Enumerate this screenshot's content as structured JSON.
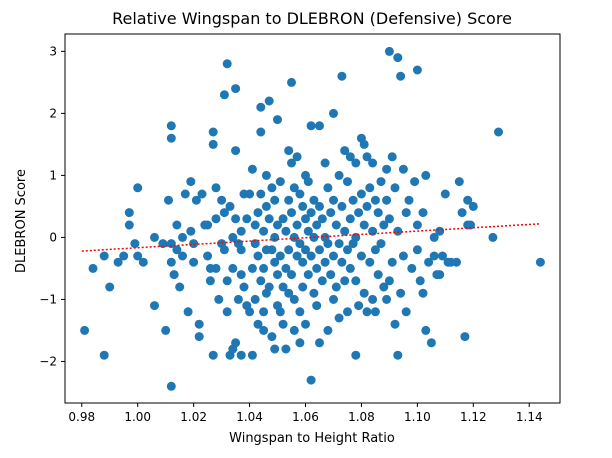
{
  "chart_data": {
    "type": "scatter",
    "title": "Relative Wingspan to DLEBRON (Defensive) Score",
    "xlabel": "Wingspan to Height Ratio",
    "ylabel": "DLEBRON Score",
    "xlim": [
      0.974,
      1.151
    ],
    "ylim": [
      -2.67,
      3.28
    ],
    "grid": false,
    "xticks": [
      {
        "value": 0.98,
        "label": "0.98"
      },
      {
        "value": 1.0,
        "label": "1.00"
      },
      {
        "value": 1.02,
        "label": "1.02"
      },
      {
        "value": 1.04,
        "label": "1.04"
      },
      {
        "value": 1.06,
        "label": "1.06"
      },
      {
        "value": 1.08,
        "label": "1.08"
      },
      {
        "value": 1.1,
        "label": "1.10"
      },
      {
        "value": 1.12,
        "label": "1.12"
      },
      {
        "value": 1.14,
        "label": "1.14"
      }
    ],
    "yticks": [
      {
        "value": -2,
        "label": "−2"
      },
      {
        "value": -1,
        "label": "−1"
      },
      {
        "value": 0,
        "label": "0"
      },
      {
        "value": 1,
        "label": "1"
      },
      {
        "value": 2,
        "label": "2"
      },
      {
        "value": 3,
        "label": "3"
      }
    ],
    "point_color": "#1f77b4",
    "trendline": {
      "x": [
        0.98,
        1.144
      ],
      "y": [
        -0.22,
        0.22
      ],
      "color": "#ff0000",
      "style": "dotted"
    },
    "points": [
      [
        0.981,
        -1.5
      ],
      [
        0.984,
        -0.5
      ],
      [
        0.988,
        -1.9
      ],
      [
        0.988,
        -0.3
      ],
      [
        0.99,
        -0.8
      ],
      [
        0.993,
        -0.4
      ],
      [
        0.995,
        -0.3
      ],
      [
        0.997,
        0.4
      ],
      [
        0.997,
        0.2
      ],
      [
        0.999,
        -0.1
      ],
      [
        1.0,
        0.8
      ],
      [
        1.0,
        -0.3
      ],
      [
        1.002,
        -0.4
      ],
      [
        1.006,
        0.0
      ],
      [
        1.006,
        -1.1
      ],
      [
        1.009,
        -0.1
      ],
      [
        1.01,
        -1.5
      ],
      [
        1.011,
        0.6
      ],
      [
        1.012,
        1.8
      ],
      [
        1.012,
        1.6
      ],
      [
        1.012,
        -0.1
      ],
      [
        1.012,
        -0.4
      ],
      [
        1.012,
        -2.4
      ],
      [
        1.013,
        -0.6
      ],
      [
        1.014,
        0.2
      ],
      [
        1.014,
        -0.2
      ],
      [
        1.015,
        -0.8
      ],
      [
        1.016,
        0.0
      ],
      [
        1.016,
        -0.3
      ],
      [
        1.017,
        0.7
      ],
      [
        1.018,
        -1.2
      ],
      [
        1.019,
        0.9
      ],
      [
        1.019,
        0.1
      ],
      [
        1.02,
        -0.1
      ],
      [
        1.02,
        -0.4
      ],
      [
        1.021,
        0.6
      ],
      [
        1.022,
        -1.4
      ],
      [
        1.022,
        -1.6
      ],
      [
        1.023,
        0.7
      ],
      [
        1.024,
        0.2
      ],
      [
        1.025,
        0.2
      ],
      [
        1.025,
        -0.3
      ],
      [
        1.026,
        -0.5
      ],
      [
        1.026,
        -0.7
      ],
      [
        1.027,
        1.7
      ],
      [
        1.027,
        1.5
      ],
      [
        1.027,
        -1.9
      ],
      [
        1.028,
        0.8
      ],
      [
        1.028,
        0.3
      ],
      [
        1.028,
        -0.5
      ],
      [
        1.029,
        -1.0
      ],
      [
        1.03,
        -0.1
      ],
      [
        1.03,
        0.6
      ],
      [
        1.031,
        2.3
      ],
      [
        1.031,
        0.4
      ],
      [
        1.031,
        -0.2
      ],
      [
        1.032,
        2.8
      ],
      [
        1.032,
        -0.7
      ],
      [
        1.032,
        -1.2
      ],
      [
        1.033,
        0.5
      ],
      [
        1.033,
        -1.9
      ],
      [
        1.034,
        0.0
      ],
      [
        1.034,
        -0.5
      ],
      [
        1.034,
        -1.8
      ],
      [
        1.035,
        2.4
      ],
      [
        1.035,
        1.4
      ],
      [
        1.035,
        0.3
      ],
      [
        1.035,
        -1.7
      ],
      [
        1.036,
        -0.1
      ],
      [
        1.036,
        -1.0
      ],
      [
        1.037,
        0.1
      ],
      [
        1.037,
        -0.2
      ],
      [
        1.037,
        -0.6
      ],
      [
        1.037,
        -1.9
      ],
      [
        1.038,
        0.7
      ],
      [
        1.038,
        -0.8
      ],
      [
        1.039,
        0.3
      ],
      [
        1.039,
        -1.1
      ],
      [
        1.04,
        0.7
      ],
      [
        1.04,
        -1.2
      ],
      [
        1.041,
        1.1
      ],
      [
        1.041,
        -0.5
      ],
      [
        1.041,
        -1.9
      ],
      [
        1.042,
        0.2
      ],
      [
        1.042,
        -0.1
      ],
      [
        1.042,
        -1.0
      ],
      [
        1.043,
        0.4
      ],
      [
        1.043,
        -0.3
      ],
      [
        1.043,
        -1.4
      ],
      [
        1.044,
        0.7
      ],
      [
        1.044,
        2.1
      ],
      [
        1.044,
        1.7
      ],
      [
        1.044,
        -0.7
      ],
      [
        1.045,
        0.1
      ],
      [
        1.045,
        -0.5
      ],
      [
        1.045,
        -1.2
      ],
      [
        1.045,
        -1.5
      ],
      [
        1.046,
        0.5
      ],
      [
        1.046,
        1.0
      ],
      [
        1.046,
        -0.2
      ],
      [
        1.046,
        -0.9
      ],
      [
        1.047,
        2.2
      ],
      [
        1.047,
        0.3
      ],
      [
        1.047,
        -0.8
      ],
      [
        1.048,
        0.8
      ],
      [
        1.048,
        -0.2
      ],
      [
        1.048,
        -1.6
      ],
      [
        1.049,
        0.6
      ],
      [
        1.049,
        0.0
      ],
      [
        1.049,
        -0.4
      ],
      [
        1.049,
        -1.8
      ],
      [
        1.05,
        1.9
      ],
      [
        1.05,
        0.2
      ],
      [
        1.05,
        -0.6
      ],
      [
        1.05,
        -1.1
      ],
      [
        1.051,
        0.9
      ],
      [
        1.051,
        -0.3
      ],
      [
        1.051,
        -1.2
      ],
      [
        1.052,
        0.3
      ],
      [
        1.052,
        -0.8
      ],
      [
        1.052,
        -1.4
      ],
      [
        1.053,
        0.1
      ],
      [
        1.053,
        -0.5
      ],
      [
        1.053,
        -1.8
      ],
      [
        1.054,
        1.4
      ],
      [
        1.054,
        0.6
      ],
      [
        1.054,
        -0.2
      ],
      [
        1.054,
        -0.9
      ],
      [
        1.055,
        1.2
      ],
      [
        1.055,
        2.5
      ],
      [
        1.055,
        0.4
      ],
      [
        1.055,
        -0.6
      ],
      [
        1.056,
        0.8
      ],
      [
        1.056,
        0.0
      ],
      [
        1.056,
        -1.0
      ],
      [
        1.056,
        -1.5
      ],
      [
        1.057,
        1.3
      ],
      [
        1.057,
        0.2
      ],
      [
        1.057,
        -0.3
      ],
      [
        1.058,
        0.7
      ],
      [
        1.058,
        -0.1
      ],
      [
        1.058,
        -1.2
      ],
      [
        1.058,
        -1.7
      ],
      [
        1.059,
        0.5
      ],
      [
        1.059,
        -0.4
      ],
      [
        1.059,
        -0.8
      ],
      [
        1.06,
        1.0
      ],
      [
        1.06,
        0.3
      ],
      [
        1.06,
        -0.2
      ],
      [
        1.06,
        -1.4
      ],
      [
        1.061,
        0.9
      ],
      [
        1.061,
        0.1
      ],
      [
        1.061,
        -0.6
      ],
      [
        1.062,
        1.8
      ],
      [
        1.062,
        0.4
      ],
      [
        1.062,
        -0.3
      ],
      [
        1.062,
        -2.3
      ],
      [
        1.063,
        0.6
      ],
      [
        1.063,
        0.0
      ],
      [
        1.063,
        -0.9
      ],
      [
        1.064,
        0.2
      ],
      [
        1.064,
        -0.5
      ],
      [
        1.064,
        -1.1
      ],
      [
        1.065,
        1.8
      ],
      [
        1.065,
        0.5
      ],
      [
        1.065,
        -0.2
      ],
      [
        1.065,
        -1.7
      ],
      [
        1.066,
        0.3
      ],
      [
        1.066,
        -0.7
      ],
      [
        1.067,
        1.2
      ],
      [
        1.067,
        0.0
      ],
      [
        1.067,
        -0.4
      ],
      [
        1.068,
        0.8
      ],
      [
        1.068,
        -0.1
      ],
      [
        1.068,
        -1.5
      ],
      [
        1.069,
        0.4
      ],
      [
        1.069,
        -0.6
      ],
      [
        1.07,
        2.0
      ],
      [
        1.07,
        0.6
      ],
      [
        1.07,
        -0.3
      ],
      [
        1.07,
        -1.0
      ],
      [
        1.071,
        0.2
      ],
      [
        1.071,
        -0.8
      ],
      [
        1.072,
        1.0
      ],
      [
        1.072,
        -0.1
      ],
      [
        1.072,
        -1.3
      ],
      [
        1.073,
        2.6
      ],
      [
        1.073,
        0.5
      ],
      [
        1.073,
        -0.4
      ],
      [
        1.074,
        1.4
      ],
      [
        1.074,
        0.1
      ],
      [
        1.074,
        -0.7
      ],
      [
        1.075,
        0.9
      ],
      [
        1.075,
        -0.2
      ],
      [
        1.075,
        -1.2
      ],
      [
        1.076,
        1.3
      ],
      [
        1.076,
        0.3
      ],
      [
        1.076,
        -0.5
      ],
      [
        1.077,
        0.6
      ],
      [
        1.077,
        -0.1
      ],
      [
        1.078,
        1.2
      ],
      [
        1.078,
        0.0
      ],
      [
        1.078,
        -0.7
      ],
      [
        1.078,
        -1.9
      ],
      [
        1.079,
        0.4
      ],
      [
        1.079,
        -1.1
      ],
      [
        1.08,
        1.6
      ],
      [
        1.08,
        0.7
      ],
      [
        1.08,
        -0.3
      ],
      [
        1.081,
        1.5
      ],
      [
        1.081,
        0.2
      ],
      [
        1.081,
        -0.9
      ],
      [
        1.082,
        1.3
      ],
      [
        1.082,
        0.5
      ],
      [
        1.082,
        -1.2
      ],
      [
        1.083,
        0.8
      ],
      [
        1.083,
        -0.4
      ],
      [
        1.084,
        1.2
      ],
      [
        1.084,
        0.1
      ],
      [
        1.084,
        -1.0
      ],
      [
        1.085,
        0.6
      ],
      [
        1.085,
        -0.2
      ],
      [
        1.085,
        -1.2
      ],
      [
        1.086,
        0.4
      ],
      [
        1.086,
        -0.6
      ],
      [
        1.087,
        0.9
      ],
      [
        1.087,
        -0.1
      ],
      [
        1.088,
        0.2
      ],
      [
        1.088,
        -0.8
      ],
      [
        1.089,
        1.1
      ],
      [
        1.089,
        0.6
      ],
      [
        1.089,
        -1.0
      ],
      [
        1.09,
        3.0
      ],
      [
        1.09,
        0.3
      ],
      [
        1.09,
        -0.7
      ],
      [
        1.091,
        1.3
      ],
      [
        1.091,
        -0.4
      ],
      [
        1.092,
        0.8
      ],
      [
        1.092,
        -1.4
      ],
      [
        1.093,
        2.9
      ],
      [
        1.093,
        -1.9
      ],
      [
        1.093,
        0.1
      ],
      [
        1.094,
        2.6
      ],
      [
        1.094,
        -0.9
      ],
      [
        1.095,
        1.1
      ],
      [
        1.095,
        -0.3
      ],
      [
        1.096,
        0.4
      ],
      [
        1.096,
        -1.2
      ],
      [
        1.097,
        0.6
      ],
      [
        1.098,
        -0.5
      ],
      [
        1.099,
        0.9
      ],
      [
        1.1,
        2.7
      ],
      [
        1.1,
        0.2
      ],
      [
        1.1,
        -0.2
      ],
      [
        1.101,
        -0.7
      ],
      [
        1.102,
        0.4
      ],
      [
        1.102,
        -0.9
      ],
      [
        1.103,
        1.0
      ],
      [
        1.103,
        -1.5
      ],
      [
        1.104,
        -0.4
      ],
      [
        1.105,
        -1.7
      ],
      [
        1.106,
        0.0
      ],
      [
        1.106,
        -0.3
      ],
      [
        1.107,
        -0.6
      ],
      [
        1.108,
        0.1
      ],
      [
        1.108,
        -0.6
      ],
      [
        1.109,
        -0.3
      ],
      [
        1.11,
        0.7
      ],
      [
        1.111,
        -0.4
      ],
      [
        1.112,
        -0.4
      ],
      [
        1.114,
        -0.4
      ],
      [
        1.115,
        0.9
      ],
      [
        1.116,
        0.4
      ],
      [
        1.117,
        -1.6
      ],
      [
        1.118,
        0.2
      ],
      [
        1.118,
        0.6
      ],
      [
        1.119,
        0.2
      ],
      [
        1.12,
        0.5
      ],
      [
        1.127,
        0.0
      ],
      [
        1.129,
        1.7
      ],
      [
        1.144,
        -0.4
      ]
    ]
  }
}
